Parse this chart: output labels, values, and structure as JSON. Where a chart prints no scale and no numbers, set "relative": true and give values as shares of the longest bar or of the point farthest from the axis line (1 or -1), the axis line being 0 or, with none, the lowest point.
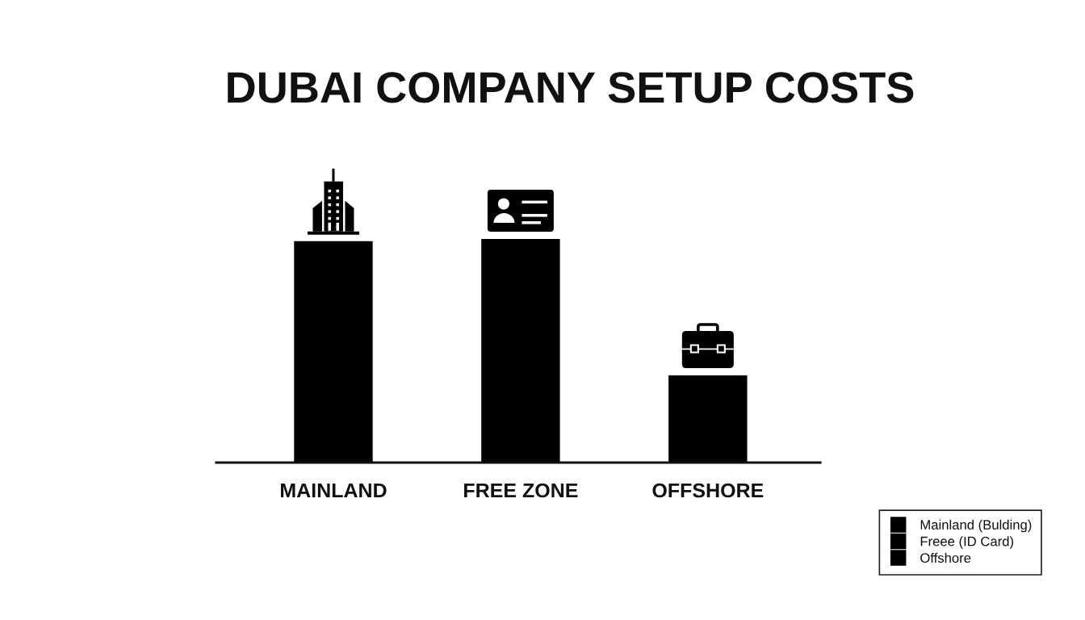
{
  "chart_data": {
    "type": "bar",
    "title": "DUBAI COMPANY SETUP COSTS",
    "categories": [
      "MAINLAND",
      "FREE ZONE",
      "OFFSHORE"
    ],
    "relative": true,
    "stacked": true,
    "series": [
      {
        "name": "Mainland (Bulding)",
        "color": "#000000",
        "values": [
          0.99,
          null,
          null
        ]
      },
      {
        "name": "Freee (ID Card)",
        "color": "#000000",
        "values": [
          null,
          1,
          null
        ]
      },
      {
        "name": "Offshore",
        "color": "#000000",
        "values": [
          null,
          null,
          0.39
        ]
      }
    ],
    "legend": "bottom right"
  }
}
